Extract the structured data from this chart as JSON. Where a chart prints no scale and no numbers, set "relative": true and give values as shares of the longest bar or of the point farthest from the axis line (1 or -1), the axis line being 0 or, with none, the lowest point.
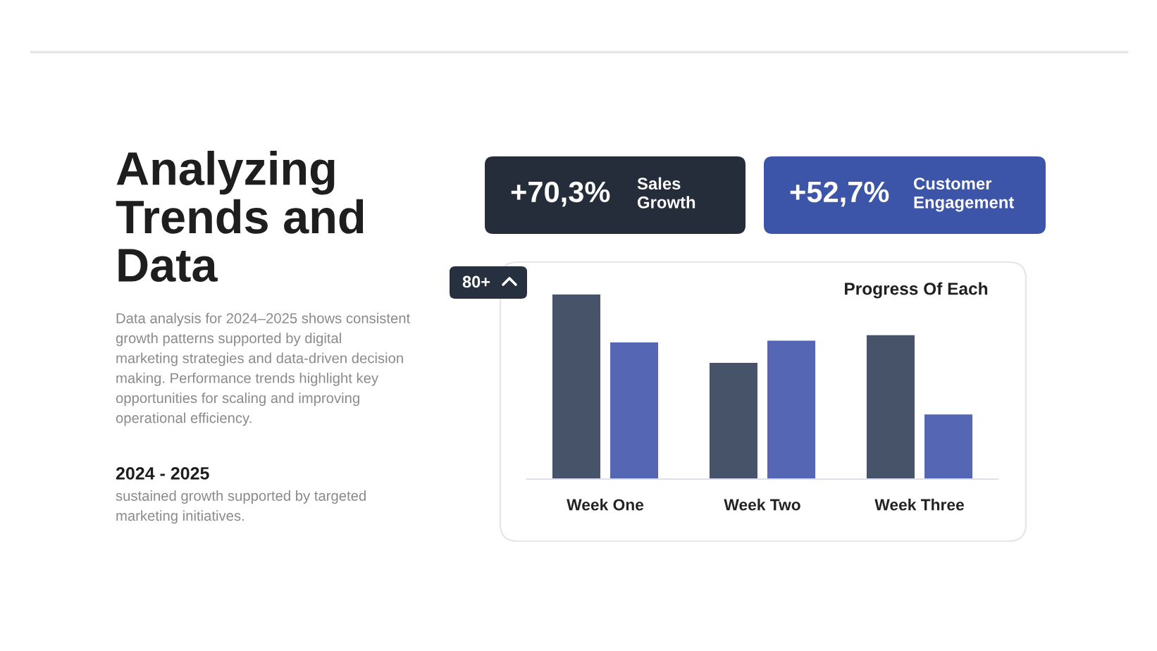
{
  "chart_data": {
    "type": "bar",
    "title": "Progress Of Each",
    "categories": [
      "Week One",
      "Week Two",
      "Week Three"
    ],
    "relative": true,
    "series": [
      {
        "color": "#465369",
        "values": [
          1,
          0.63,
          0.78
        ]
      },
      {
        "color": "#5566b4",
        "values": [
          0.74,
          0.75,
          0.35
        ]
      }
    ],
    "annotations": [
      "Analyzing\nTrends and\nData",
      "Data analysis for 2024–2025 shows consistent\ngrowth patterns supported by digital\nmarketing strategies and data-driven decision\nmaking. Performance trends highlight key\nopportunities for scaling and improving\noperational efficiency.",
      "2024 - 2025",
      "sustained growth supported by targeted\nmarketing initiatives.",
      "+70,3%",
      "Sales\nGrowth",
      "+52,7%",
      "Customer\nEngagement",
      "80+"
    ]
  }
}
